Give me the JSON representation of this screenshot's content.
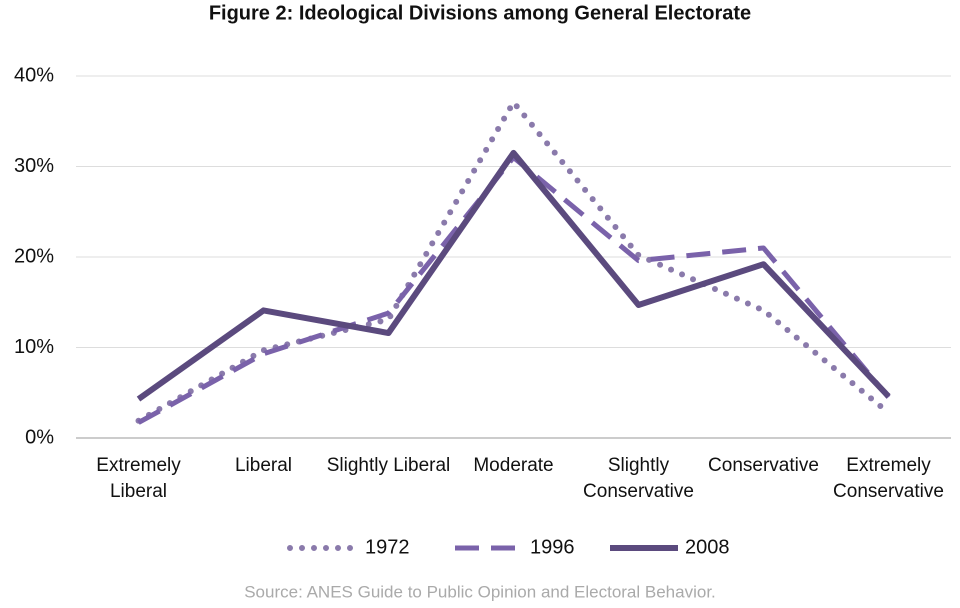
{
  "chart_data": {
    "type": "line",
    "title": "Figure 2: Ideological Divisions among General Electorate",
    "categories": [
      "Extremely Liberal",
      "Liberal",
      "Slightly Liberal",
      "Moderate",
      "Slightly Conservative",
      "Conservative",
      "Extremely Conservative"
    ],
    "series": [
      {
        "name": "1972",
        "color": "#8a7aab",
        "dash": "dotted",
        "values": [
          1.9,
          9.7,
          13.1,
          37.1,
          20.2,
          14.1,
          2.8
        ]
      },
      {
        "name": "1996",
        "color": "#7a62aa",
        "dash": "dashed",
        "values": [
          1.7,
          9.3,
          13.8,
          31.0,
          19.6,
          21.0,
          4.5
        ]
      },
      {
        "name": "2008",
        "color": "#5b4a7e",
        "dash": "solid",
        "values": [
          4.3,
          14.1,
          11.6,
          31.5,
          14.7,
          19.2,
          4.6
        ]
      }
    ],
    "ylim": [
      0,
      40
    ],
    "yticks": [
      {
        "value": 0,
        "label": "0%"
      },
      {
        "value": 10,
        "label": "10%"
      },
      {
        "value": 20,
        "label": "20%"
      },
      {
        "value": 30,
        "label": "30%"
      },
      {
        "value": 40,
        "label": "40%"
      }
    ],
    "grid": true,
    "legend": "bottom",
    "source": "Source: ANES Guide to Public Opinion and Electoral Behavior."
  }
}
